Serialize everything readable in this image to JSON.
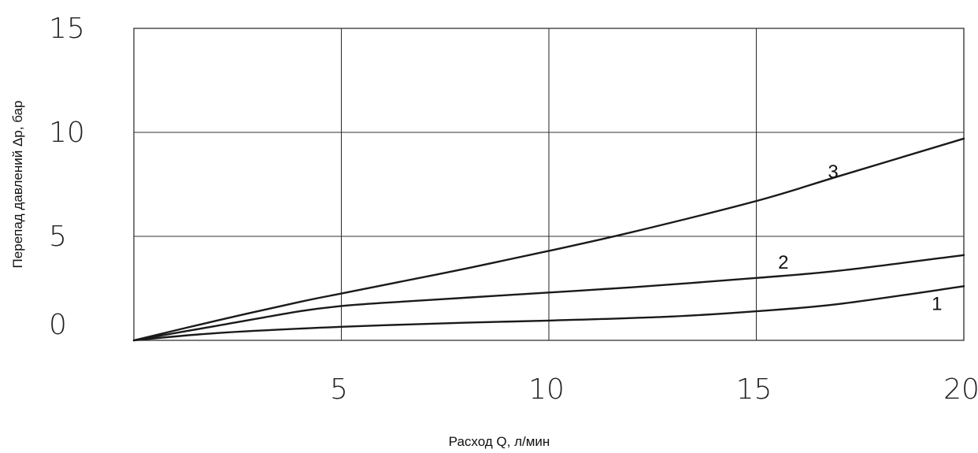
{
  "chart_data": {
    "type": "line",
    "title": "",
    "xlabel": "Расход Q, л/мин",
    "ylabel": "Перепад давлений Δp, бар",
    "xlim": [
      0,
      20
    ],
    "ylim": [
      0,
      15
    ],
    "x_ticks": [
      "5",
      "10",
      "15",
      "20"
    ],
    "y_ticks": [
      "0",
      "5",
      "10",
      "15"
    ],
    "grid": true,
    "colors": {
      "line": "#1a1a1a",
      "grid": "#333333",
      "text": "#222222"
    },
    "series": [
      {
        "name": "1",
        "x": [
          0,
          2,
          5,
          8,
          10,
          13,
          15,
          17,
          20
        ],
        "y": [
          0,
          0.35,
          0.65,
          0.85,
          0.95,
          1.15,
          1.4,
          1.75,
          2.6
        ]
      },
      {
        "name": "2",
        "x": [
          0,
          2,
          4,
          5,
          6,
          8,
          10,
          12,
          15,
          17,
          20
        ],
        "y": [
          0,
          0.7,
          1.4,
          1.65,
          1.8,
          2.05,
          2.3,
          2.55,
          3.0,
          3.35,
          4.1
        ]
      },
      {
        "name": "3",
        "x": [
          0,
          2,
          4,
          5,
          6,
          8,
          10,
          12,
          15,
          17,
          20
        ],
        "y": [
          0,
          0.95,
          1.85,
          2.25,
          2.65,
          3.45,
          4.3,
          5.2,
          6.7,
          7.9,
          9.7
        ]
      }
    ]
  }
}
